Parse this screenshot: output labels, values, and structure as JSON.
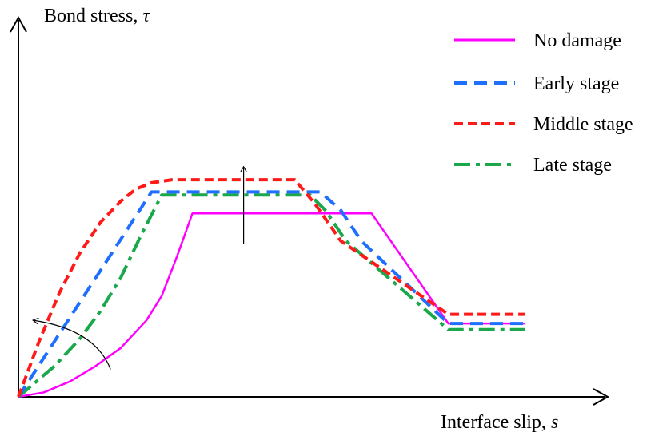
{
  "chart_data": {
    "type": "line",
    "title": "",
    "ylabel_text": "Bond stress, ",
    "ylabel_symbol": "τ",
    "xlabel_text": "Interface slip, ",
    "xlabel_symbol": "s",
    "xlim": [
      0,
      100
    ],
    "ylim": [
      0,
      100
    ],
    "grid": false,
    "legend_position": "top-right",
    "series": [
      {
        "name": "No damage",
        "color": "#ff00ff",
        "dash": "solid",
        "points": [
          [
            0,
            0
          ],
          [
            5,
            1.5
          ],
          [
            10,
            5
          ],
          [
            15,
            10
          ],
          [
            20,
            16
          ],
          [
            25,
            25
          ],
          [
            28,
            33
          ],
          [
            31,
            46
          ],
          [
            34,
            60
          ],
          [
            69,
            60
          ],
          [
            84,
            24
          ],
          [
            99,
            24
          ]
        ]
      },
      {
        "name": "Early stage",
        "color": "#1f6fff",
        "dash": "dash",
        "points": [
          [
            0,
            0
          ],
          [
            26,
            67
          ],
          [
            59,
            67
          ],
          [
            63,
            61
          ],
          [
            67,
            51
          ],
          [
            84,
            24
          ],
          [
            99,
            24
          ]
        ]
      },
      {
        "name": "Middle stage",
        "color": "#ff1a1a",
        "dash": "dash",
        "points": [
          [
            0,
            0
          ],
          [
            4,
            18
          ],
          [
            8,
            34
          ],
          [
            12,
            47
          ],
          [
            16,
            57
          ],
          [
            20,
            64
          ],
          [
            23,
            68
          ],
          [
            26,
            70
          ],
          [
            30,
            71
          ],
          [
            54,
            71
          ],
          [
            58,
            63
          ],
          [
            63,
            51
          ],
          [
            84,
            27
          ],
          [
            99,
            27
          ]
        ]
      },
      {
        "name": "Late stage",
        "color": "#1aa84a",
        "dash": "dashdot",
        "points": [
          [
            0,
            0
          ],
          [
            7,
            10
          ],
          [
            12,
            19
          ],
          [
            16,
            28
          ],
          [
            20,
            39
          ],
          [
            24,
            53
          ],
          [
            28,
            66
          ],
          [
            57,
            66
          ],
          [
            60,
            61
          ],
          [
            64,
            51
          ],
          [
            84,
            22
          ],
          [
            99,
            22
          ]
        ]
      }
    ],
    "annotations": [
      {
        "type": "arrow-up",
        "from": [
          44,
          50
        ],
        "to": [
          44,
          75
        ]
      },
      {
        "type": "curved-arrow",
        "from": [
          18,
          9
        ],
        "via": [
          15,
          22
        ],
        "to": [
          3,
          25
        ]
      }
    ]
  }
}
